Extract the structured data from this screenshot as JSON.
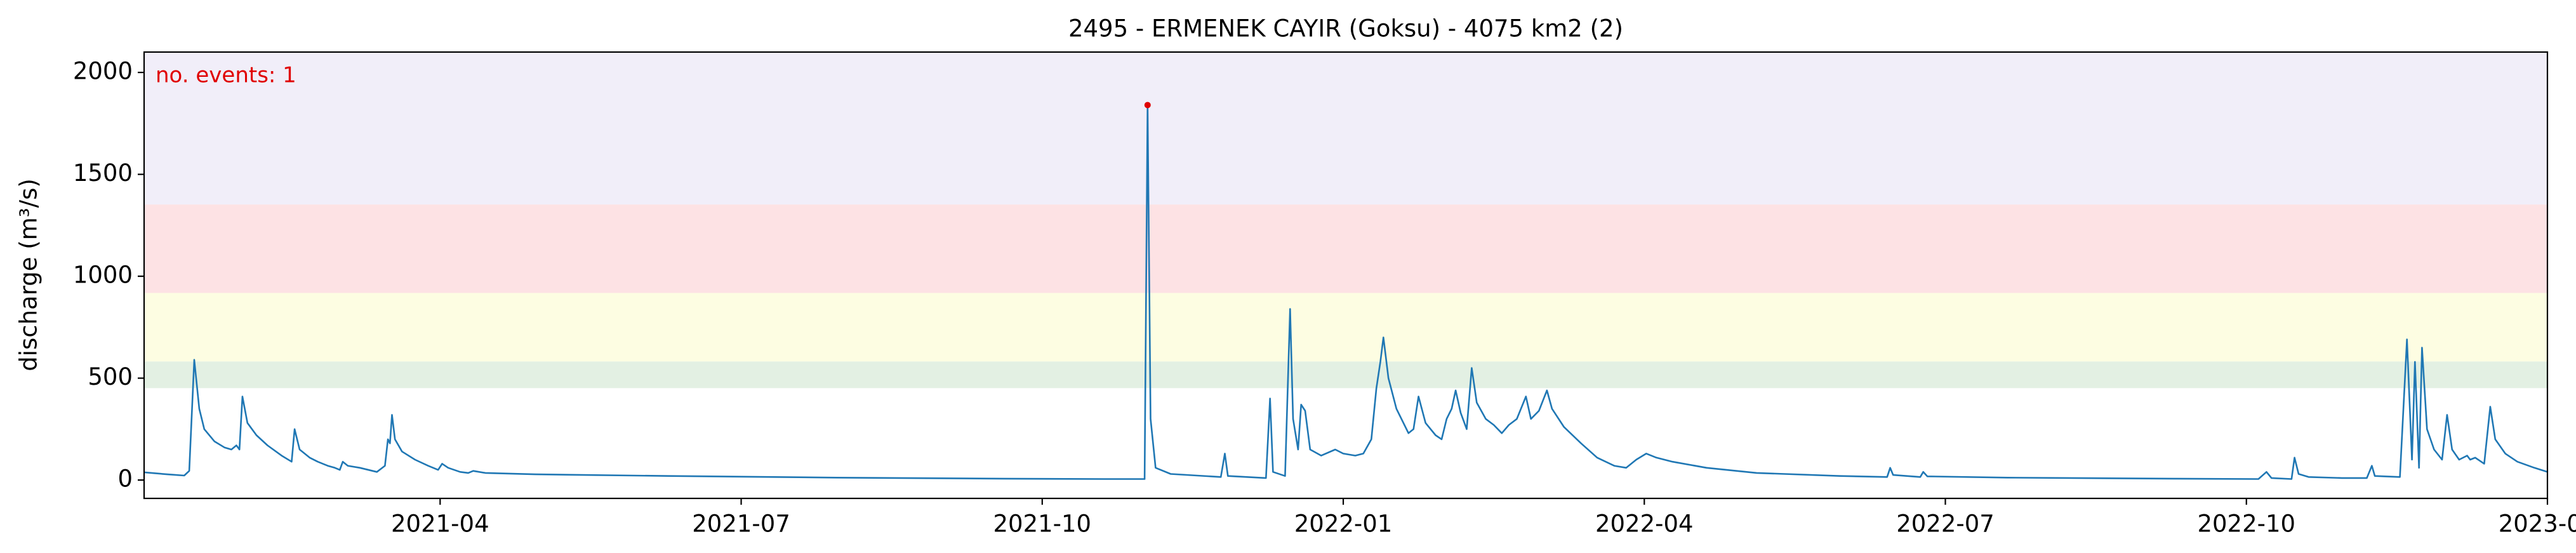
{
  "chart_data": {
    "type": "line",
    "title": "2495 - ERMENEK CAYIR (Goksu) - 4075 km2 (2)",
    "y_label": "discharge (m³/s)",
    "annotation": "no. events: 1",
    "annotation_color": "#e00000",
    "xlim": [
      0.05,
      24
    ],
    "xticks": [
      {
        "value": 3,
        "label": "2021-04"
      },
      {
        "value": 6,
        "label": "2021-07"
      },
      {
        "value": 9,
        "label": "2021-10"
      },
      {
        "value": 12,
        "label": "2022-01"
      },
      {
        "value": 15,
        "label": "2022-04"
      },
      {
        "value": 18,
        "label": "2022-07"
      },
      {
        "value": 21,
        "label": "2022-10"
      },
      {
        "value": 24,
        "label": "2023-01"
      }
    ],
    "ylim": [
      -90,
      2100
    ],
    "yticks": [
      0,
      500,
      1000,
      1500,
      2000
    ],
    "bands": [
      {
        "lower": 451,
        "upper": 582,
        "color": "#e3f0e3"
      },
      {
        "lower": 582,
        "upper": 918,
        "color": "#fdfde2"
      },
      {
        "lower": 918,
        "upper": 1352,
        "color": "#fde2e4"
      },
      {
        "lower": 1352,
        "upper": 2100,
        "color": "#f1eef9"
      }
    ],
    "series": [
      {
        "color": "#1f77b4",
        "x": [
          0.05,
          0.28,
          0.45,
          0.5,
          0.55,
          0.6,
          0.65,
          0.75,
          0.85,
          0.92,
          0.97,
          1.0,
          1.03,
          1.08,
          1.17,
          1.28,
          1.42,
          1.52,
          1.55,
          1.6,
          1.7,
          1.78,
          1.88,
          1.95,
          2.0,
          2.03,
          2.08,
          2.2,
          2.37,
          2.45,
          2.48,
          2.5,
          2.52,
          2.55,
          2.62,
          2.75,
          2.88,
          2.98,
          3.02,
          3.08,
          3.2,
          3.28,
          3.33,
          3.45,
          3.95,
          5.28,
          6.95,
          8.62,
          9.62,
          10.02,
          10.05,
          10.08,
          10.13,
          10.28,
          10.78,
          10.82,
          10.85,
          11.23,
          11.27,
          11.3,
          11.42,
          11.47,
          11.5,
          11.55,
          11.58,
          11.62,
          11.67,
          11.78,
          11.92,
          12.0,
          12.12,
          12.2,
          12.28,
          12.33,
          12.37,
          12.4,
          12.45,
          12.53,
          12.65,
          12.7,
          12.75,
          12.82,
          12.92,
          12.98,
          13.03,
          13.08,
          13.12,
          13.17,
          13.23,
          13.28,
          13.33,
          13.42,
          13.5,
          13.58,
          13.65,
          13.73,
          13.82,
          13.87,
          13.95,
          14.03,
          14.08,
          14.2,
          14.37,
          14.53,
          14.7,
          14.82,
          14.92,
          15.02,
          15.12,
          15.28,
          15.62,
          16.12,
          16.95,
          17.42,
          17.45,
          17.48,
          17.75,
          17.78,
          17.82,
          18.62,
          20.28,
          21.12,
          21.2,
          21.25,
          21.45,
          21.48,
          21.52,
          21.62,
          21.95,
          22.2,
          22.25,
          22.28,
          22.53,
          22.6,
          22.65,
          22.68,
          22.72,
          22.75,
          22.8,
          22.87,
          22.95,
          23.0,
          23.05,
          23.12,
          23.2,
          23.23,
          23.28,
          23.37,
          23.43,
          23.48,
          23.58,
          23.7,
          23.87,
          24.0
        ],
        "values": [
          38,
          28,
          22,
          45,
          590,
          350,
          250,
          190,
          160,
          150,
          170,
          150,
          410,
          280,
          220,
          170,
          120,
          90,
          250,
          150,
          110,
          90,
          70,
          60,
          50,
          90,
          70,
          60,
          40,
          70,
          200,
          180,
          320,
          200,
          140,
          100,
          70,
          50,
          80,
          60,
          40,
          35,
          45,
          35,
          28,
          20,
          12,
          7,
          5,
          5,
          1840,
          300,
          60,
          30,
          15,
          130,
          20,
          10,
          400,
          40,
          20,
          840,
          300,
          150,
          370,
          340,
          150,
          120,
          150,
          130,
          120,
          130,
          200,
          450,
          580,
          700,
          500,
          350,
          230,
          250,
          410,
          280,
          220,
          200,
          300,
          350,
          440,
          330,
          250,
          550,
          380,
          300,
          270,
          230,
          270,
          300,
          410,
          300,
          340,
          440,
          350,
          260,
          180,
          110,
          70,
          60,
          100,
          130,
          110,
          90,
          60,
          35,
          20,
          15,
          60,
          25,
          15,
          40,
          18,
          12,
          7,
          5,
          40,
          10,
          5,
          110,
          30,
          15,
          10,
          10,
          70,
          20,
          15,
          690,
          100,
          580,
          60,
          650,
          250,
          150,
          100,
          320,
          150,
          100,
          120,
          100,
          110,
          80,
          360,
          200,
          130,
          90,
          60,
          40
        ]
      },
      {
        "color": "#e00000",
        "x": [
          10.05
        ],
        "values": [
          1840
        ]
      }
    ]
  }
}
